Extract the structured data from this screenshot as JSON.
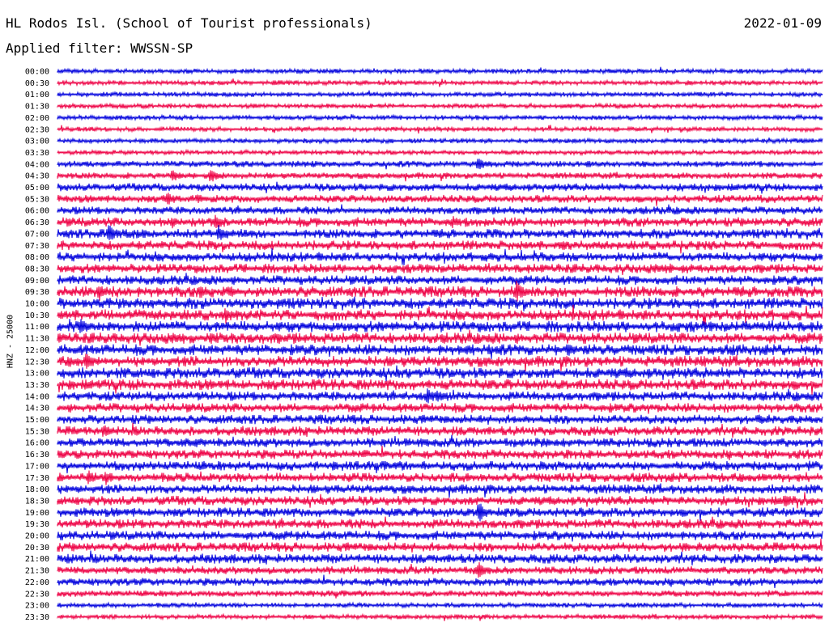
{
  "header": {
    "station": "HL Rodos Isl. (School of Tourist professionals)",
    "date": "2022-01-09",
    "filter_label": "Applied filter: WWSSN-SP",
    "channel_label": "HNZ - 25000"
  },
  "chart_data": {
    "type": "line",
    "title": "HL Rodos Isl. (School of Tourist professionals)",
    "ylabel": "HNZ - 25000",
    "series_colors": [
      "#0000dd",
      "#ee0044"
    ],
    "trace_labels": [
      "00:00",
      "00:30",
      "01:00",
      "01:30",
      "02:00",
      "02:30",
      "03:00",
      "03:30",
      "04:00",
      "04:30",
      "05:00",
      "05:30",
      "06:00",
      "06:30",
      "07:00",
      "07:30",
      "08:00",
      "08:30",
      "09:00",
      "09:30",
      "10:00",
      "10:30",
      "11:00",
      "11:30",
      "12:00",
      "12:30",
      "13:00",
      "13:30",
      "14:00",
      "14:30",
      "15:00",
      "15:30",
      "16:00",
      "16:30",
      "17:00",
      "17:30",
      "18:00",
      "18:30",
      "19:00",
      "19:30",
      "20:00",
      "20:30",
      "21:00",
      "21:30",
      "22:00",
      "22:30",
      "23:00",
      "23:30"
    ],
    "noise_level": [
      3,
      3,
      3,
      3,
      3,
      3,
      3,
      3,
      4,
      4,
      5,
      5,
      5,
      6,
      6,
      6,
      6,
      6,
      6,
      7,
      7,
      7,
      7,
      7,
      7,
      7,
      7,
      7,
      6,
      6,
      6,
      6,
      6,
      6,
      6,
      6,
      6,
      6,
      6,
      6,
      6,
      6,
      6,
      5,
      5,
      4,
      3,
      3
    ],
    "events": [
      {
        "trace": 8,
        "minute": 16.5,
        "amp": 10
      },
      {
        "trace": 9,
        "minute": 4.5,
        "amp": 9
      },
      {
        "trace": 9,
        "minute": 6.0,
        "amp": 10
      },
      {
        "trace": 11,
        "minute": 4.3,
        "amp": 9
      },
      {
        "trace": 11,
        "minute": 5.5,
        "amp": 6
      },
      {
        "trace": 13,
        "minute": 4.5,
        "amp": 8
      },
      {
        "trace": 13,
        "minute": 6.2,
        "amp": 10
      },
      {
        "trace": 13,
        "minute": 15.5,
        "amp": 8
      },
      {
        "trace": 14,
        "minute": 2.0,
        "amp": 13
      },
      {
        "trace": 14,
        "minute": 6.3,
        "amp": 12
      },
      {
        "trace": 15,
        "minute": 19.8,
        "amp": 7
      },
      {
        "trace": 17,
        "minute": 24.0,
        "amp": 7
      },
      {
        "trace": 19,
        "minute": 1.6,
        "amp": 13
      },
      {
        "trace": 19,
        "minute": 5.6,
        "amp": 9
      },
      {
        "trace": 19,
        "minute": 6.8,
        "amp": 8
      },
      {
        "trace": 19,
        "minute": 18.0,
        "amp": 14
      },
      {
        "trace": 21,
        "minute": 6.6,
        "amp": 11
      },
      {
        "trace": 22,
        "minute": 0.9,
        "amp": 11
      },
      {
        "trace": 23,
        "minute": 6.0,
        "amp": 7
      },
      {
        "trace": 24,
        "minute": 16.0,
        "amp": 8
      },
      {
        "trace": 24,
        "minute": 20.0,
        "amp": 10
      },
      {
        "trace": 25,
        "minute": 1.1,
        "amp": 12
      },
      {
        "trace": 28,
        "minute": 14.5,
        "amp": 10
      },
      {
        "trace": 28,
        "minute": 14.9,
        "amp": 10
      },
      {
        "trace": 30,
        "minute": 27.5,
        "amp": 7
      },
      {
        "trace": 31,
        "minute": 1.8,
        "amp": 10
      },
      {
        "trace": 34,
        "minute": 10.8,
        "amp": 7
      },
      {
        "trace": 35,
        "minute": 1.2,
        "amp": 10
      },
      {
        "trace": 35,
        "minute": 1.9,
        "amp": 10
      },
      {
        "trace": 37,
        "minute": 28.5,
        "amp": 10
      },
      {
        "trace": 38,
        "minute": 16.5,
        "amp": 15
      },
      {
        "trace": 43,
        "minute": 16.5,
        "amp": 12
      }
    ]
  }
}
